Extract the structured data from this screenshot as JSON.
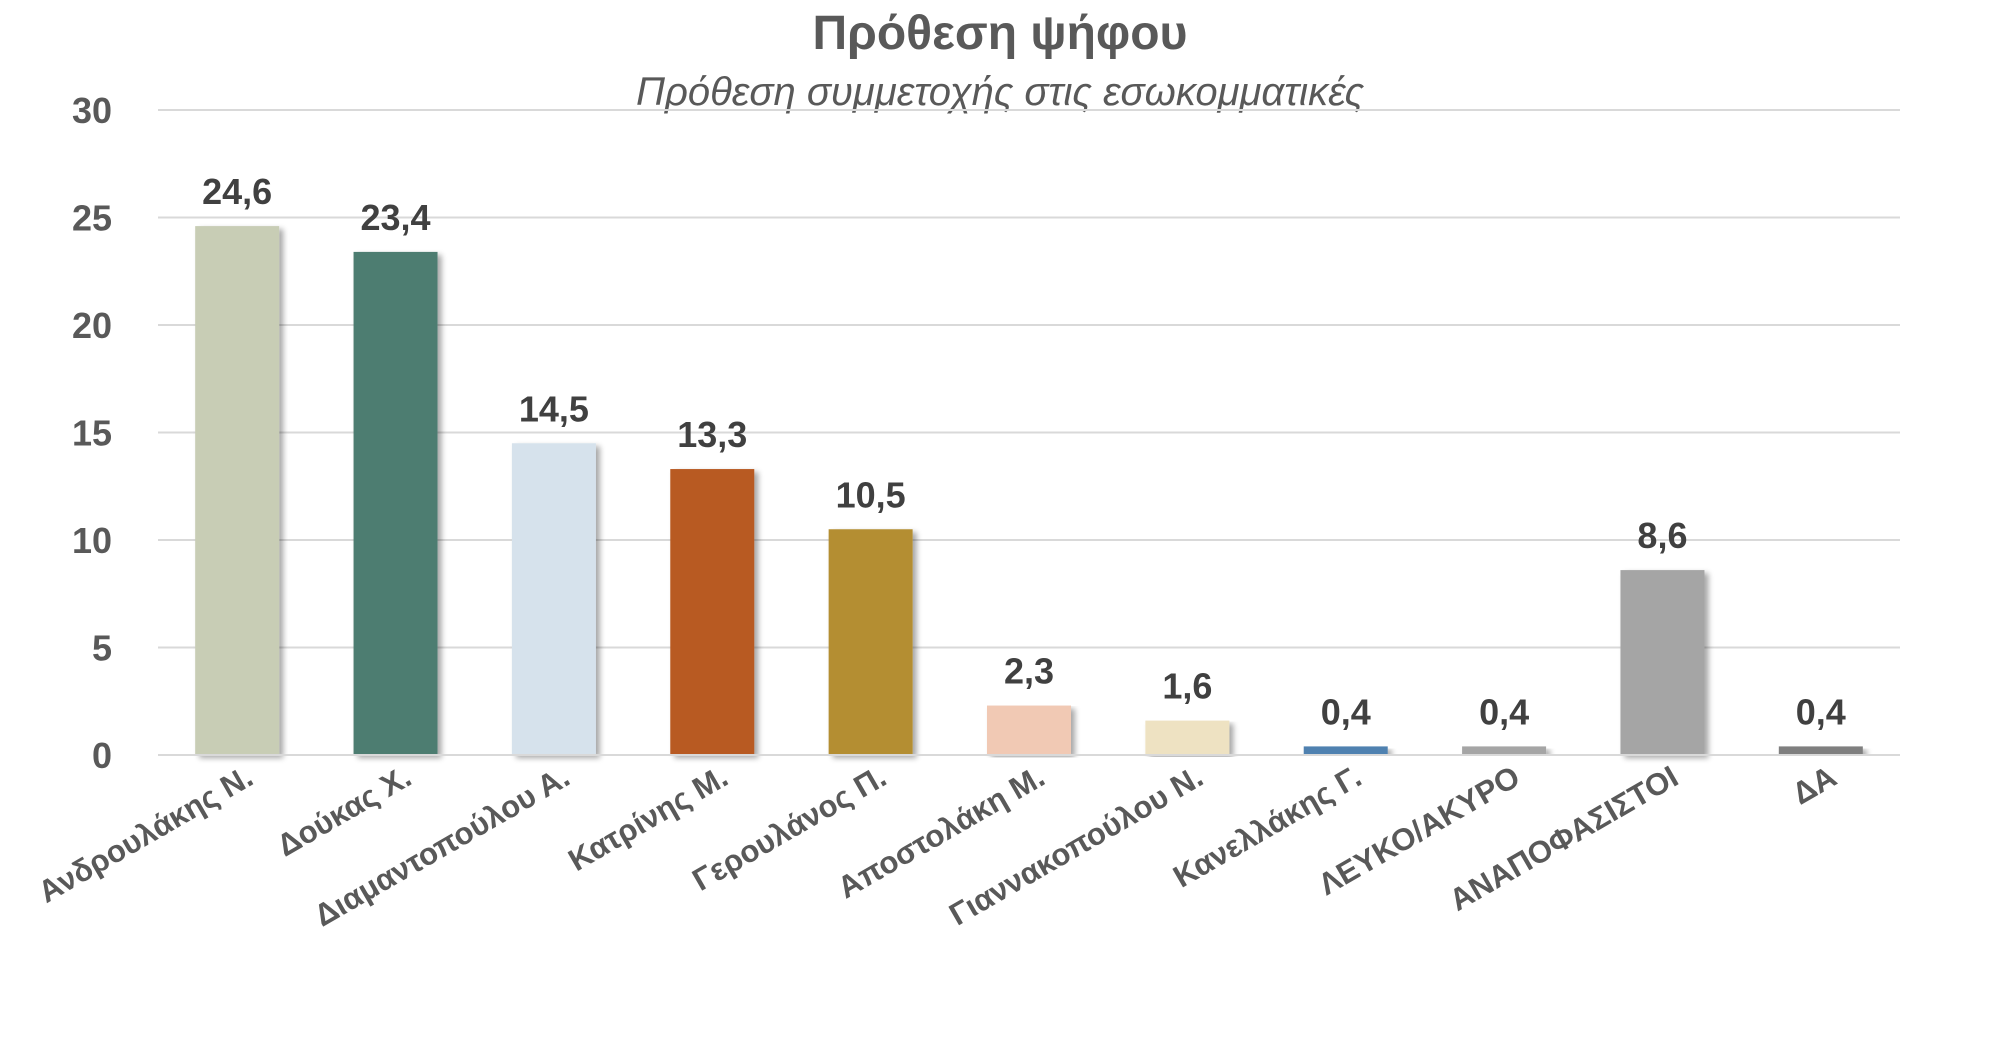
{
  "chart_data": {
    "type": "bar",
    "title": "Πρόθεση ψήφου",
    "subtitle": "Πρόθεση συμμετοχής στις εσωκομματικές",
    "xlabel": "",
    "ylabel": "",
    "ylim": [
      0,
      30
    ],
    "yticks": [
      0,
      5,
      10,
      15,
      20,
      25,
      30
    ],
    "grid": true,
    "legend": "none",
    "categories": [
      "Ανδρουλάκης Ν.",
      "Δούκας Χ.",
      "Διαμαντοπούλου Α.",
      "Κατρίνης Μ.",
      "Γερουλάνος Π.",
      "Αποστολάκη Μ.",
      "Γιαννακοπούλου Ν.",
      "Κανελλάκης Γ.",
      "ΛΕΥΚΟ/ΑΚΥΡΟ",
      "ΑΝΑΠΟΦΑΣΙΣΤΟΙ",
      "ΔΑ"
    ],
    "values": [
      24.6,
      23.4,
      14.5,
      13.3,
      10.5,
      2.3,
      1.6,
      0.4,
      0.4,
      8.6,
      0.4
    ],
    "data_labels": [
      "24,6",
      "23,4",
      "14,5",
      "13,3",
      "10,5",
      "2,3",
      "1,6",
      "0,4",
      "0,4",
      "8,6",
      "0,4"
    ],
    "colors": [
      "#C8CDB5",
      "#4E7D71",
      "#D6E2EC",
      "#B85A22",
      "#B48E32",
      "#F1C9B4",
      "#EEE2C2",
      "#4F81B0",
      "#A5A5A5",
      "#A5A5A5",
      "#7F7F7F"
    ]
  }
}
